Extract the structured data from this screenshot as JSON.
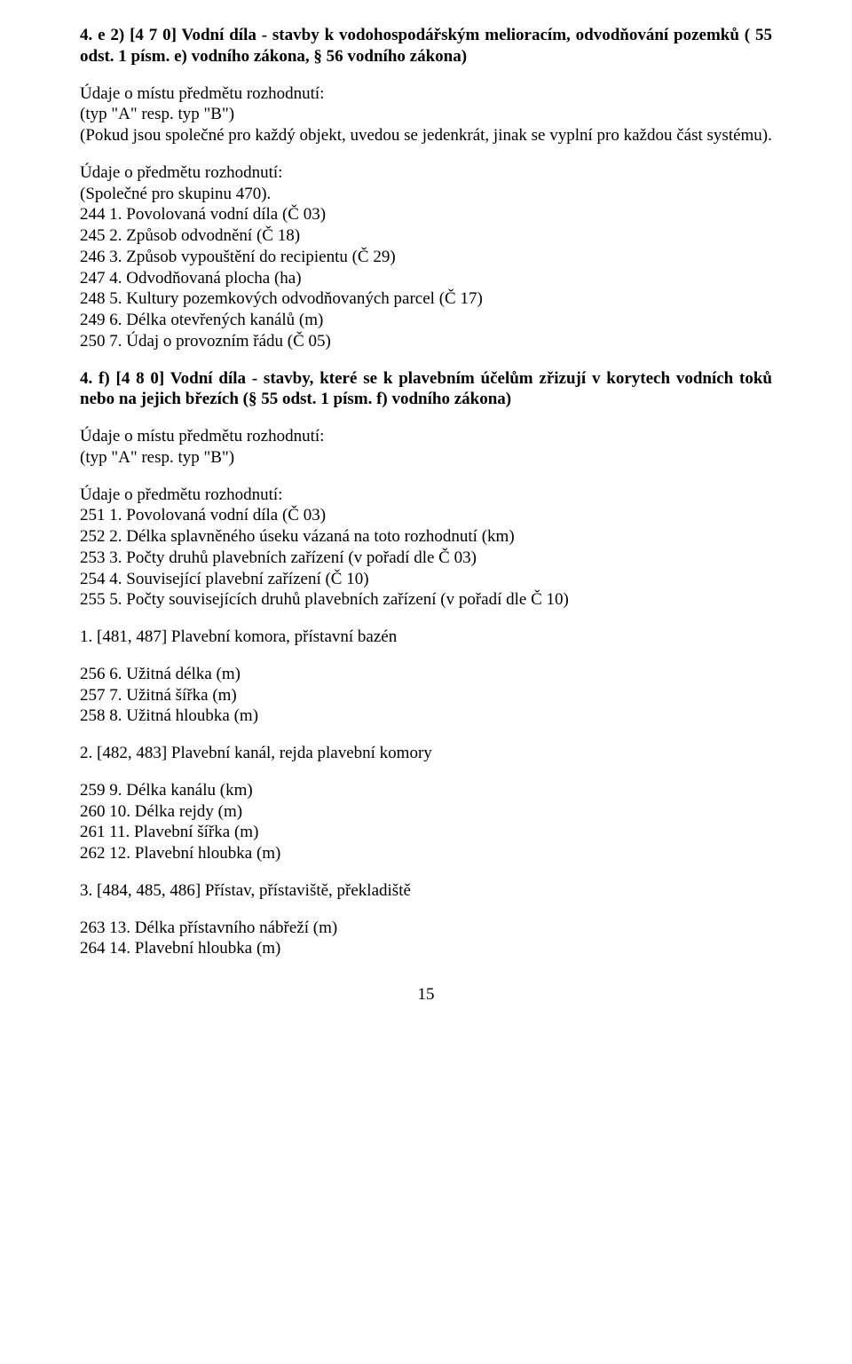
{
  "section_4e2": {
    "heading": "4. e 2)  [4 7 0]  Vodní díla -  stavby k  vodohospodářským melioracím, odvodňování pozemků ( 55 odst.  1 písm.  e) vodního zákona, § 56 vodního zákona)",
    "udaje_mistu_line1": "Údaje o místu předmětu rozhodnutí:",
    "udaje_mistu_line2": "(typ \"A\" resp.  typ \"B\")",
    "udaje_mistu_line3": "(Pokud jsou společné pro každý  objekt, uvedou se jedenkrát, jinak se vyplní pro každou část systému).",
    "udaje_predmetu_line1": "Údaje o předmětu rozhodnutí:",
    "udaje_predmetu_line2": "(Společné pro skupinu 470).",
    "items": [
      "244  1. Povolovaná vodní díla (Č 03)",
      "245  2. Způsob odvodnění (Č 18)",
      "246  3. Způsob vypouštění do recipientu (Č 29)",
      "247  4. Odvodňovaná plocha (ha)",
      "248  5. Kultury pozemkových odvodňovaných parcel (Č 17)",
      "249  6. Délka otevřených kanálů (m)",
      "250  7. Údaj o provozním řádu (Č 05)"
    ]
  },
  "section_4f": {
    "heading": "4. f)   [4 8 0]   Vodní díla -   stavby, které se   k plavebním  účelům zřizují   v korytech vodních  toků  nebo  na  jejich březích (§ 55 odst.  1 písm.  f) vodního zákona)",
    "udaje_mistu_line1": "Údaje o místu předmětu rozhodnutí:",
    "udaje_mistu_line2": "(typ \"A\" resp. typ \"B\")",
    "udaje_predmetu_line1": "Údaje o předmětu rozhodnutí:",
    "items": [
      "251  1. Povolovaná vodní díla (Č 03)",
      "252  2. Délka splavněného úseku vázaná na toto rozhodnutí (km)",
      "253  3. Počty druhů plavebních zařízení (v pořadí dle Č 03)",
      "254  4. Související plavební zařízení (Č 10)",
      "255  5. Počty souvisejících druhů plavebních zařízení (v pořadí dle Č 10)"
    ],
    "sub1_heading": "1. [481, 487] Plavební komora, přístavní bazén",
    "sub1_items": [
      "256  6. Užitná délka (m)",
      "257  7. Užitná šířka (m)",
      "258  8. Užitná hloubka (m)"
    ],
    "sub2_heading": "2. [482, 483] Plavební kanál, rejda plavební komory",
    "sub2_items": [
      "259  9. Délka kanálu (km)",
      "260  10. Délka rejdy (m)",
      "261  11. Plavební šířka (m)",
      "262  12. Plavební hloubka (m)"
    ],
    "sub3_heading": "3. [484, 485, 486] Přístav, přístaviště, překladiště",
    "sub3_items": [
      "263  13. Délka přístavního nábřeží (m)",
      "264  14. Plavební hloubka (m)"
    ]
  },
  "page_number": "15"
}
